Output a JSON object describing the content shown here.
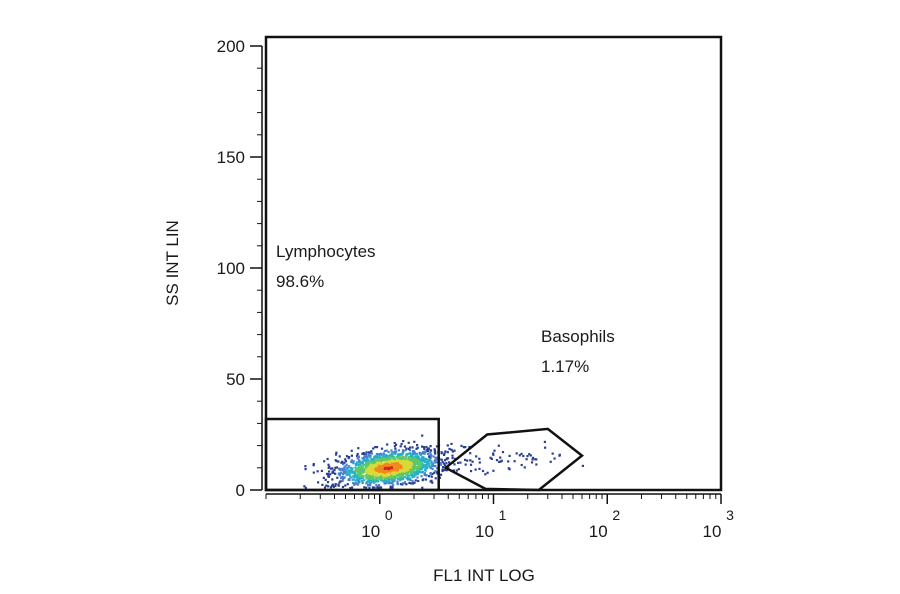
{
  "chart_data": {
    "type": "scatter",
    "title": "",
    "xlabel": "FL1 INT LOG",
    "ylabel": "SS INT LIN",
    "x_scale": "log",
    "xlim": [
      0.1,
      1000
    ],
    "ylim": [
      0,
      200
    ],
    "x_ticks": [
      {
        "base": "10",
        "exp": "0",
        "value": 1
      },
      {
        "base": "10",
        "exp": "1",
        "value": 10
      },
      {
        "base": "10",
        "exp": "2",
        "value": 100
      },
      {
        "base": "10",
        "exp": "3",
        "value": 1000
      }
    ],
    "y_ticks": [
      {
        "label": "0",
        "value": 0
      },
      {
        "label": "50",
        "value": 50
      },
      {
        "label": "100",
        "value": 100
      },
      {
        "label": "150",
        "value": 150
      },
      {
        "label": "200",
        "value": 200
      }
    ],
    "grid": false,
    "density_colors": [
      "#2b3f8f",
      "#4a7fd0",
      "#27b0c8",
      "#5cc86b",
      "#d9d93a",
      "#f08a1c",
      "#d62020"
    ],
    "populations": [
      {
        "name": "Lymphocytes",
        "cx": 1.2,
        "cy": 10,
        "spread_logx": 0.22,
        "spread_y": 3.8,
        "n": 1700
      },
      {
        "name": "Basophils",
        "cx": 15,
        "cy": 14,
        "spread_logx": 0.28,
        "spread_y": 2.5,
        "n": 60
      }
    ],
    "gates": [
      {
        "name": "Lymphocytes",
        "label": "Lymphocytes",
        "percent": "98.6%",
        "shape": "rectangle",
        "points": [
          [
            0.1,
            0
          ],
          [
            0.1,
            32
          ],
          [
            3.3,
            32
          ],
          [
            3.3,
            0
          ]
        ]
      },
      {
        "name": "Basophils",
        "label": "Basophils",
        "percent": "1.17%",
        "shape": "polygon",
        "points": [
          [
            3.8,
            10
          ],
          [
            8.8,
            25
          ],
          [
            30,
            27.5
          ],
          [
            60,
            15.5
          ],
          [
            25,
            0
          ],
          [
            8.5,
            0.5
          ]
        ]
      }
    ]
  }
}
